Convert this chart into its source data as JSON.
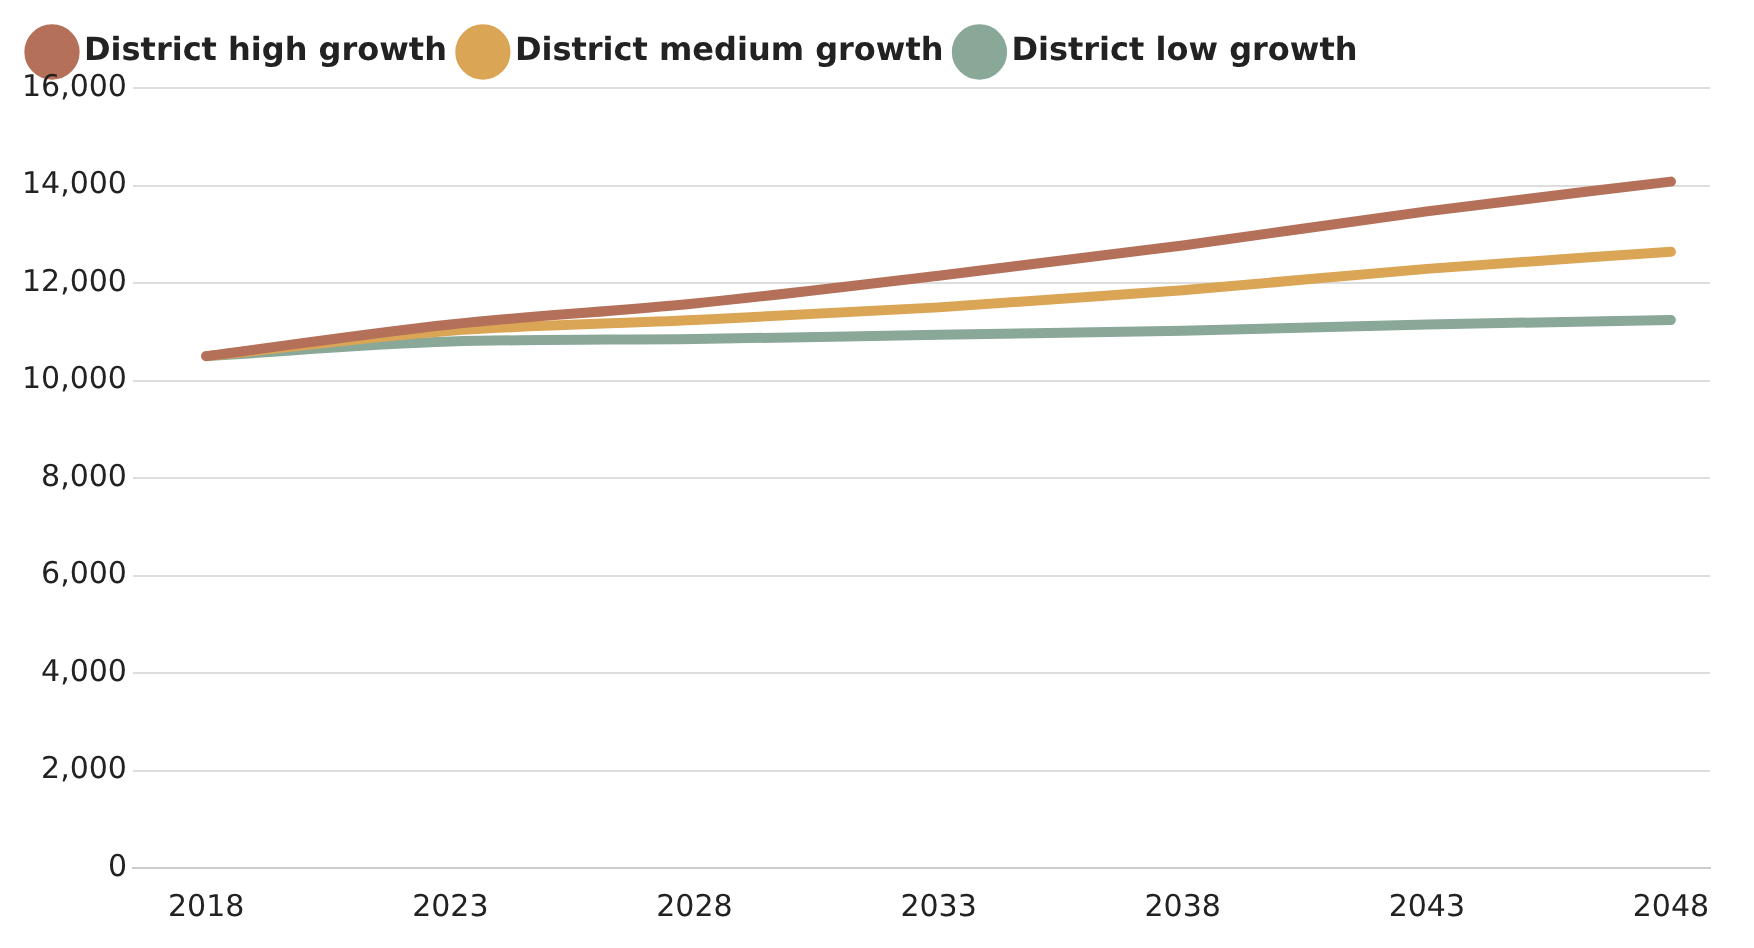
{
  "chart_data": {
    "type": "line",
    "x": [
      2018,
      2023,
      2028,
      2033,
      2038,
      2043,
      2048
    ],
    "series": [
      {
        "name": "District high growth",
        "color": "#b5705a",
        "values": [
          10500,
          11150,
          11580,
          12150,
          12770,
          13470,
          14080
        ]
      },
      {
        "name": "District medium growth",
        "color": "#dba556",
        "values": [
          10500,
          11020,
          11240,
          11500,
          11850,
          12290,
          12640
        ]
      },
      {
        "name": "District low growth",
        "color": "#8aa897",
        "values": [
          10500,
          10800,
          10850,
          10940,
          11020,
          11150,
          11240
        ]
      }
    ],
    "xlim": [
      2016.5,
      2048.8
    ],
    "xticks": [
      2018,
      2023,
      2028,
      2033,
      2038,
      2043,
      2048
    ],
    "ylim": [
      0,
      16000
    ],
    "yticks": [
      0,
      {
        "value": 2000,
        "label": "2,000"
      },
      {
        "value": 4000,
        "label": "4,000"
      },
      {
        "value": 6000,
        "label": "6,000"
      },
      {
        "value": 8000,
        "label": "8,000"
      },
      {
        "value": 10000,
        "label": "10,000"
      },
      {
        "value": 12000,
        "label": "12,000"
      },
      {
        "value": 14000,
        "label": "14,000"
      },
      {
        "value": 16000,
        "label": "16,000"
      }
    ],
    "grid": "y",
    "legend": "top left",
    "marker": "none",
    "line_style": "solid"
  }
}
